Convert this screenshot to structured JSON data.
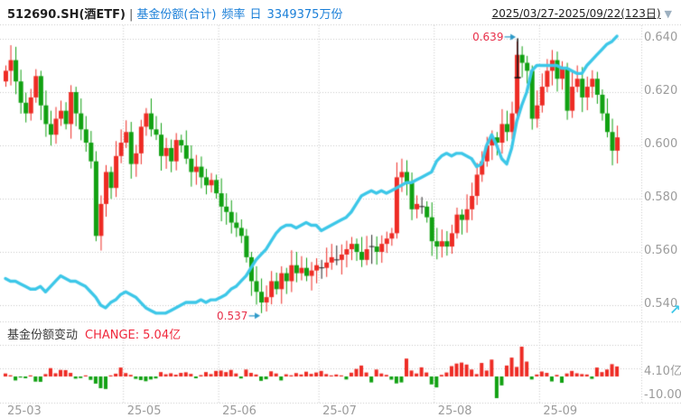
{
  "header": {
    "symbol": "512690.SH(酒ETF)",
    "separator": "|",
    "series_label": "基金份额(合计)",
    "freq_label": "频率",
    "freq_value": "日",
    "total_share": "3349375万份",
    "date_range": "2025/03/27-2025/09/22(123日)",
    "dropdown_icon": "▼"
  },
  "section": {
    "title": "基金份额变动",
    "change_label": "CHANGE:",
    "change_value": "5.04亿"
  },
  "corner_icon": "↗",
  "colors": {
    "up": "#ee2b24",
    "down": "#11a112",
    "doji": "#222222",
    "share_line": "#3cc7e8",
    "annotation_text": "#e8304a",
    "arrow": "#2e9ac9",
    "axis_text": "#9b9b9b",
    "grid": "#c9c9c9",
    "title_blue": "#1a7fd8",
    "change_red": "#f0283c"
  },
  "chart_data": {
    "type": "candlestick+line+bar",
    "title": "512690.SH(酒ETF) 基金份额(合计) 日",
    "legend_position": "none",
    "grid": "dotted",
    "price_panel": {
      "y_ticks": [
        "0.640",
        "0.620",
        "0.600",
        "0.580",
        "0.560",
        "0.540"
      ],
      "y_tick_values": [
        0.64,
        0.62,
        0.6,
        0.58,
        0.56,
        0.54
      ],
      "ylim": [
        0.533,
        0.645
      ],
      "annotations": [
        {
          "label": "0.639",
          "value": 0.639,
          "day_index": 102,
          "kind": "high"
        },
        {
          "label": "0.537",
          "value": 0.537,
          "day_index": 51,
          "kind": "low"
        }
      ],
      "closes": [
        0.628,
        0.632,
        0.624,
        0.616,
        0.612,
        0.618,
        0.626,
        0.615,
        0.608,
        0.604,
        0.61,
        0.613,
        0.608,
        0.62,
        0.612,
        0.606,
        0.601,
        0.594,
        0.566,
        0.578,
        0.59,
        0.584,
        0.596,
        0.601,
        0.605,
        0.593,
        0.597,
        0.607,
        0.612,
        0.606,
        0.604,
        0.596,
        0.599,
        0.594,
        0.602,
        0.6,
        0.595,
        0.59,
        0.592,
        0.588,
        0.585,
        0.587,
        0.582,
        0.577,
        0.575,
        0.571,
        0.569,
        0.566,
        0.558,
        0.549,
        0.545,
        0.541,
        0.543,
        0.549,
        0.546,
        0.552,
        0.549,
        0.555,
        0.552,
        0.554,
        0.551,
        0.553,
        0.555,
        0.554,
        0.556,
        0.558,
        0.557,
        0.559,
        0.561,
        0.563,
        0.56,
        0.557,
        0.561,
        0.562,
        0.56,
        0.563,
        0.565,
        0.567,
        0.588,
        0.59,
        0.586,
        0.576,
        0.578,
        0.577,
        0.573,
        0.564,
        0.562,
        0.564,
        0.562,
        0.567,
        0.574,
        0.572,
        0.576,
        0.581,
        0.589,
        0.594,
        0.6,
        0.603,
        0.601,
        0.608,
        0.605,
        0.612,
        0.634,
        0.631,
        0.628,
        0.61,
        0.615,
        0.622,
        0.628,
        0.632,
        0.625,
        0.629,
        0.613,
        0.622,
        0.625,
        0.618,
        0.622,
        0.625,
        0.619,
        0.612,
        0.605,
        0.598,
        0.603
      ],
      "share_line_price_scale": [
        0.55,
        0.549,
        0.549,
        0.548,
        0.547,
        0.546,
        0.546,
        0.547,
        0.545,
        0.547,
        0.549,
        0.551,
        0.55,
        0.549,
        0.549,
        0.548,
        0.547,
        0.545,
        0.543,
        0.54,
        0.539,
        0.541,
        0.542,
        0.544,
        0.545,
        0.544,
        0.543,
        0.541,
        0.539,
        0.538,
        0.537,
        0.537,
        0.537,
        0.538,
        0.539,
        0.54,
        0.541,
        0.541,
        0.541,
        0.542,
        0.541,
        0.542,
        0.542,
        0.543,
        0.544,
        0.546,
        0.547,
        0.549,
        0.551,
        0.554,
        0.557,
        0.559,
        0.561,
        0.564,
        0.567,
        0.569,
        0.57,
        0.57,
        0.569,
        0.57,
        0.571,
        0.57,
        0.57,
        0.568,
        0.569,
        0.57,
        0.571,
        0.572,
        0.573,
        0.575,
        0.578,
        0.581,
        0.582,
        0.583,
        0.582,
        0.583,
        0.582,
        0.583,
        0.584,
        0.585,
        0.586,
        0.586,
        0.587,
        0.588,
        0.589,
        0.59,
        0.594,
        0.596,
        0.597,
        0.596,
        0.597,
        0.597,
        0.596,
        0.595,
        0.592,
        0.593,
        0.6,
        0.604,
        0.6,
        0.595,
        0.593,
        0.599,
        0.609,
        0.615,
        0.62,
        0.628,
        0.63,
        0.63,
        0.63,
        0.63,
        0.63,
        0.629,
        0.629,
        0.628,
        0.627,
        0.627,
        0.63,
        0.632,
        0.634,
        0.636,
        0.638,
        0.639,
        0.641
      ]
    },
    "volume_panel": {
      "y_tick_labels": [
        "4.10亿",
        "-10.00亿"
      ],
      "y_tick_values": [
        4.1,
        -10.0
      ],
      "share_change_yi": [
        1.5,
        0.6,
        -2.0,
        -0.5,
        -0.9,
        0.4,
        -2.6,
        -2.7,
        1.2,
        4.2,
        1.6,
        3.3,
        3.2,
        1.8,
        -1.1,
        -0.8,
        0.5,
        -1.7,
        -3.6,
        -5.9,
        -6.3,
        0.4,
        1.4,
        4.5,
        1.7,
        0.8,
        -1.2,
        -1.8,
        -2.4,
        -1.5,
        -1.0,
        2.2,
        1.1,
        1.6,
        0.9,
        1.8,
        2.1,
        1.3,
        -0.9,
        0.7,
        2.2,
        1.2,
        2.8,
        3.0,
        2.2,
        3.3,
        1.5,
        -1.0,
        3.5,
        1.8,
        1.0,
        -2.2,
        -1.4,
        2.6,
        1.5,
        -2.0,
        1.1,
        0.6,
        1.7,
        1.0,
        2.4,
        1.3,
        2.0,
        2.8,
        1.2,
        0.5,
        1.0,
        0.4,
        -1.5,
        1.9,
        3.8,
        5.5,
        2.0,
        -3.0,
        3.5,
        1.5,
        0.8,
        -1.6,
        -3.5,
        -3.0,
        9.0,
        3.0,
        1.5,
        4.6,
        2.0,
        -4.0,
        -5.5,
        0.8,
        2.0,
        5.2,
        6.5,
        7.0,
        6.0,
        3.5,
        1.2,
        6.8,
        3.0,
        8.5,
        -10.9,
        -4.5,
        5.5,
        9.5,
        4.8,
        15.0,
        7.5,
        -1.5,
        1.0,
        2.5,
        1.8,
        -2.5,
        0.8,
        -3.2,
        1.5,
        2.8,
        1.6,
        1.2,
        1.0,
        -1.2,
        4.5,
        2.2,
        3.5,
        6.2,
        5.04
      ]
    },
    "x_ticks": [
      {
        "label": "25-03",
        "day_index": 0
      },
      {
        "label": "25-05",
        "day_index": 24
      },
      {
        "label": "25-06",
        "day_index": 43
      },
      {
        "label": "25-07",
        "day_index": 63
      },
      {
        "label": "25-08",
        "day_index": 86
      },
      {
        "label": "25-09",
        "day_index": 107
      }
    ]
  }
}
